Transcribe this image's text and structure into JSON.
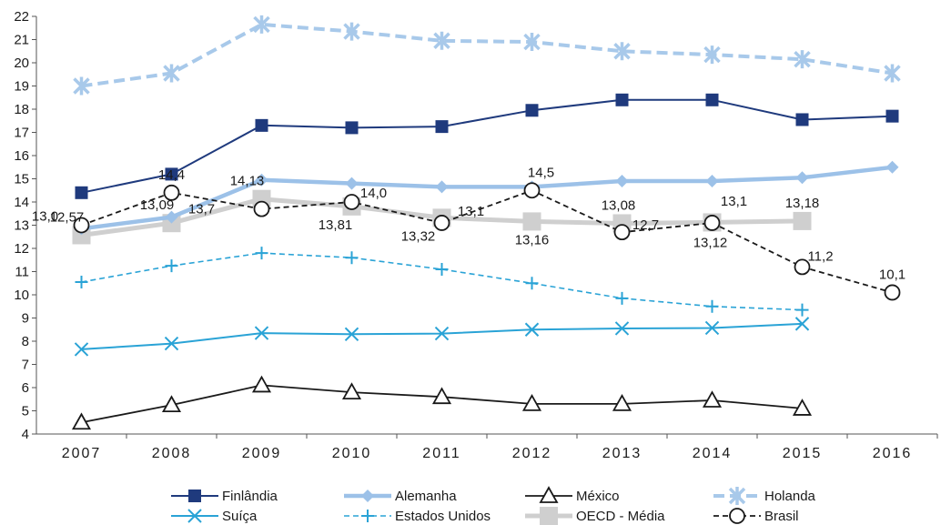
{
  "chart_data": {
    "type": "line",
    "title": "",
    "xlabel": "",
    "ylabel": "",
    "ylim": [
      4,
      22
    ],
    "yticks": [
      "4",
      "5",
      "6",
      "7",
      "8",
      "9",
      "10",
      "11",
      "12",
      "13",
      "14",
      "15",
      "16",
      "17",
      "18",
      "19",
      "20",
      "21",
      "22"
    ],
    "categories": [
      "2007",
      "2008",
      "2009",
      "2010",
      "2011",
      "2012",
      "2013",
      "2014",
      "2015",
      "2016"
    ],
    "grid": false,
    "legend_position": "bottom",
    "series": [
      {
        "key": "finlandia",
        "name": "Finlândia",
        "color": "#1f3a7d",
        "marker": "square",
        "dash": "solid",
        "values": [
          14.4,
          15.2,
          17.3,
          17.2,
          17.25,
          17.95,
          18.4,
          18.4,
          17.55,
          17.7
        ]
      },
      {
        "key": "alemanha",
        "name": "Alemanha",
        "color": "#9cc1e8",
        "marker": "diamond",
        "dash": "solid",
        "values": [
          12.85,
          13.35,
          14.95,
          14.8,
          14.65,
          14.65,
          14.9,
          14.9,
          15.05,
          15.5
        ]
      },
      {
        "key": "mexico",
        "name": "México",
        "color": "#1a1a1a",
        "marker": "triangle",
        "dash": "solid",
        "values": [
          4.5,
          5.25,
          6.1,
          5.8,
          5.6,
          5.3,
          5.3,
          5.45,
          5.1,
          null
        ]
      },
      {
        "key": "holanda",
        "name": "Holanda",
        "color": "#a8c9ea",
        "marker": "star",
        "dash": "dashed",
        "values": [
          19.0,
          19.55,
          21.65,
          21.35,
          20.95,
          20.9,
          20.5,
          20.35,
          20.15,
          19.55
        ]
      },
      {
        "key": "suica",
        "name": "Suíça",
        "color": "#2aa3d6",
        "marker": "x",
        "dash": "solid",
        "values": [
          7.65,
          7.9,
          8.35,
          8.3,
          8.33,
          8.5,
          8.55,
          8.57,
          8.75,
          null
        ]
      },
      {
        "key": "eua",
        "name": "Estados Unidos",
        "color": "#2aa3d6",
        "marker": "plus",
        "dash": "dashed",
        "values": [
          10.55,
          11.25,
          11.8,
          11.6,
          11.1,
          10.5,
          9.85,
          9.5,
          9.35,
          null
        ]
      },
      {
        "key": "oecd",
        "name": "OECD - Média",
        "color": "#cfcfcf",
        "marker": "bigsquare",
        "dash": "solid",
        "values": [
          12.57,
          13.09,
          14.13,
          13.81,
          13.32,
          13.16,
          13.08,
          13.12,
          13.18,
          null
        ]
      },
      {
        "key": "brasil",
        "name": "Brasil",
        "color": "#1a1a1a",
        "marker": "circle",
        "dash": "dashed",
        "values": [
          13.0,
          14.4,
          13.7,
          14.0,
          13.1,
          14.5,
          12.7,
          13.1,
          11.2,
          10.1
        ]
      }
    ],
    "data_labels": [
      {
        "text": "13,0",
        "cat": 0,
        "value": 13.0
      },
      {
        "text": "14,4",
        "cat": 1,
        "value": 14.4
      },
      {
        "text": "13,7",
        "cat": 2,
        "value": 13.7
      },
      {
        "text": "14,0",
        "cat": 3,
        "value": 14.0
      },
      {
        "text": "13,1",
        "cat": 4,
        "value": 13.1
      },
      {
        "text": "14,5",
        "cat": 5,
        "value": 14.5
      },
      {
        "text": "12,7",
        "cat": 6,
        "value": 12.7
      },
      {
        "text": "13,1",
        "cat": 7,
        "value": 13.1
      },
      {
        "text": "11,2",
        "cat": 8,
        "value": 11.2
      },
      {
        "text": "10,1",
        "cat": 9,
        "value": 10.1
      },
      {
        "text": "12,57",
        "cat": 0,
        "value": 12.57
      },
      {
        "text": "13,09",
        "cat": 1,
        "value": 13.09
      },
      {
        "text": "14,13",
        "cat": 2,
        "value": 14.13
      },
      {
        "text": "13,81",
        "cat": 3,
        "value": 13.81
      },
      {
        "text": "13,32",
        "cat": 4,
        "value": 13.32
      },
      {
        "text": "13,16",
        "cat": 5,
        "value": 13.16
      },
      {
        "text": "13,08",
        "cat": 6,
        "value": 13.08
      },
      {
        "text": "13,12",
        "cat": 7,
        "value": 13.12
      },
      {
        "text": "13,18",
        "cat": 8,
        "value": 13.18
      }
    ]
  }
}
